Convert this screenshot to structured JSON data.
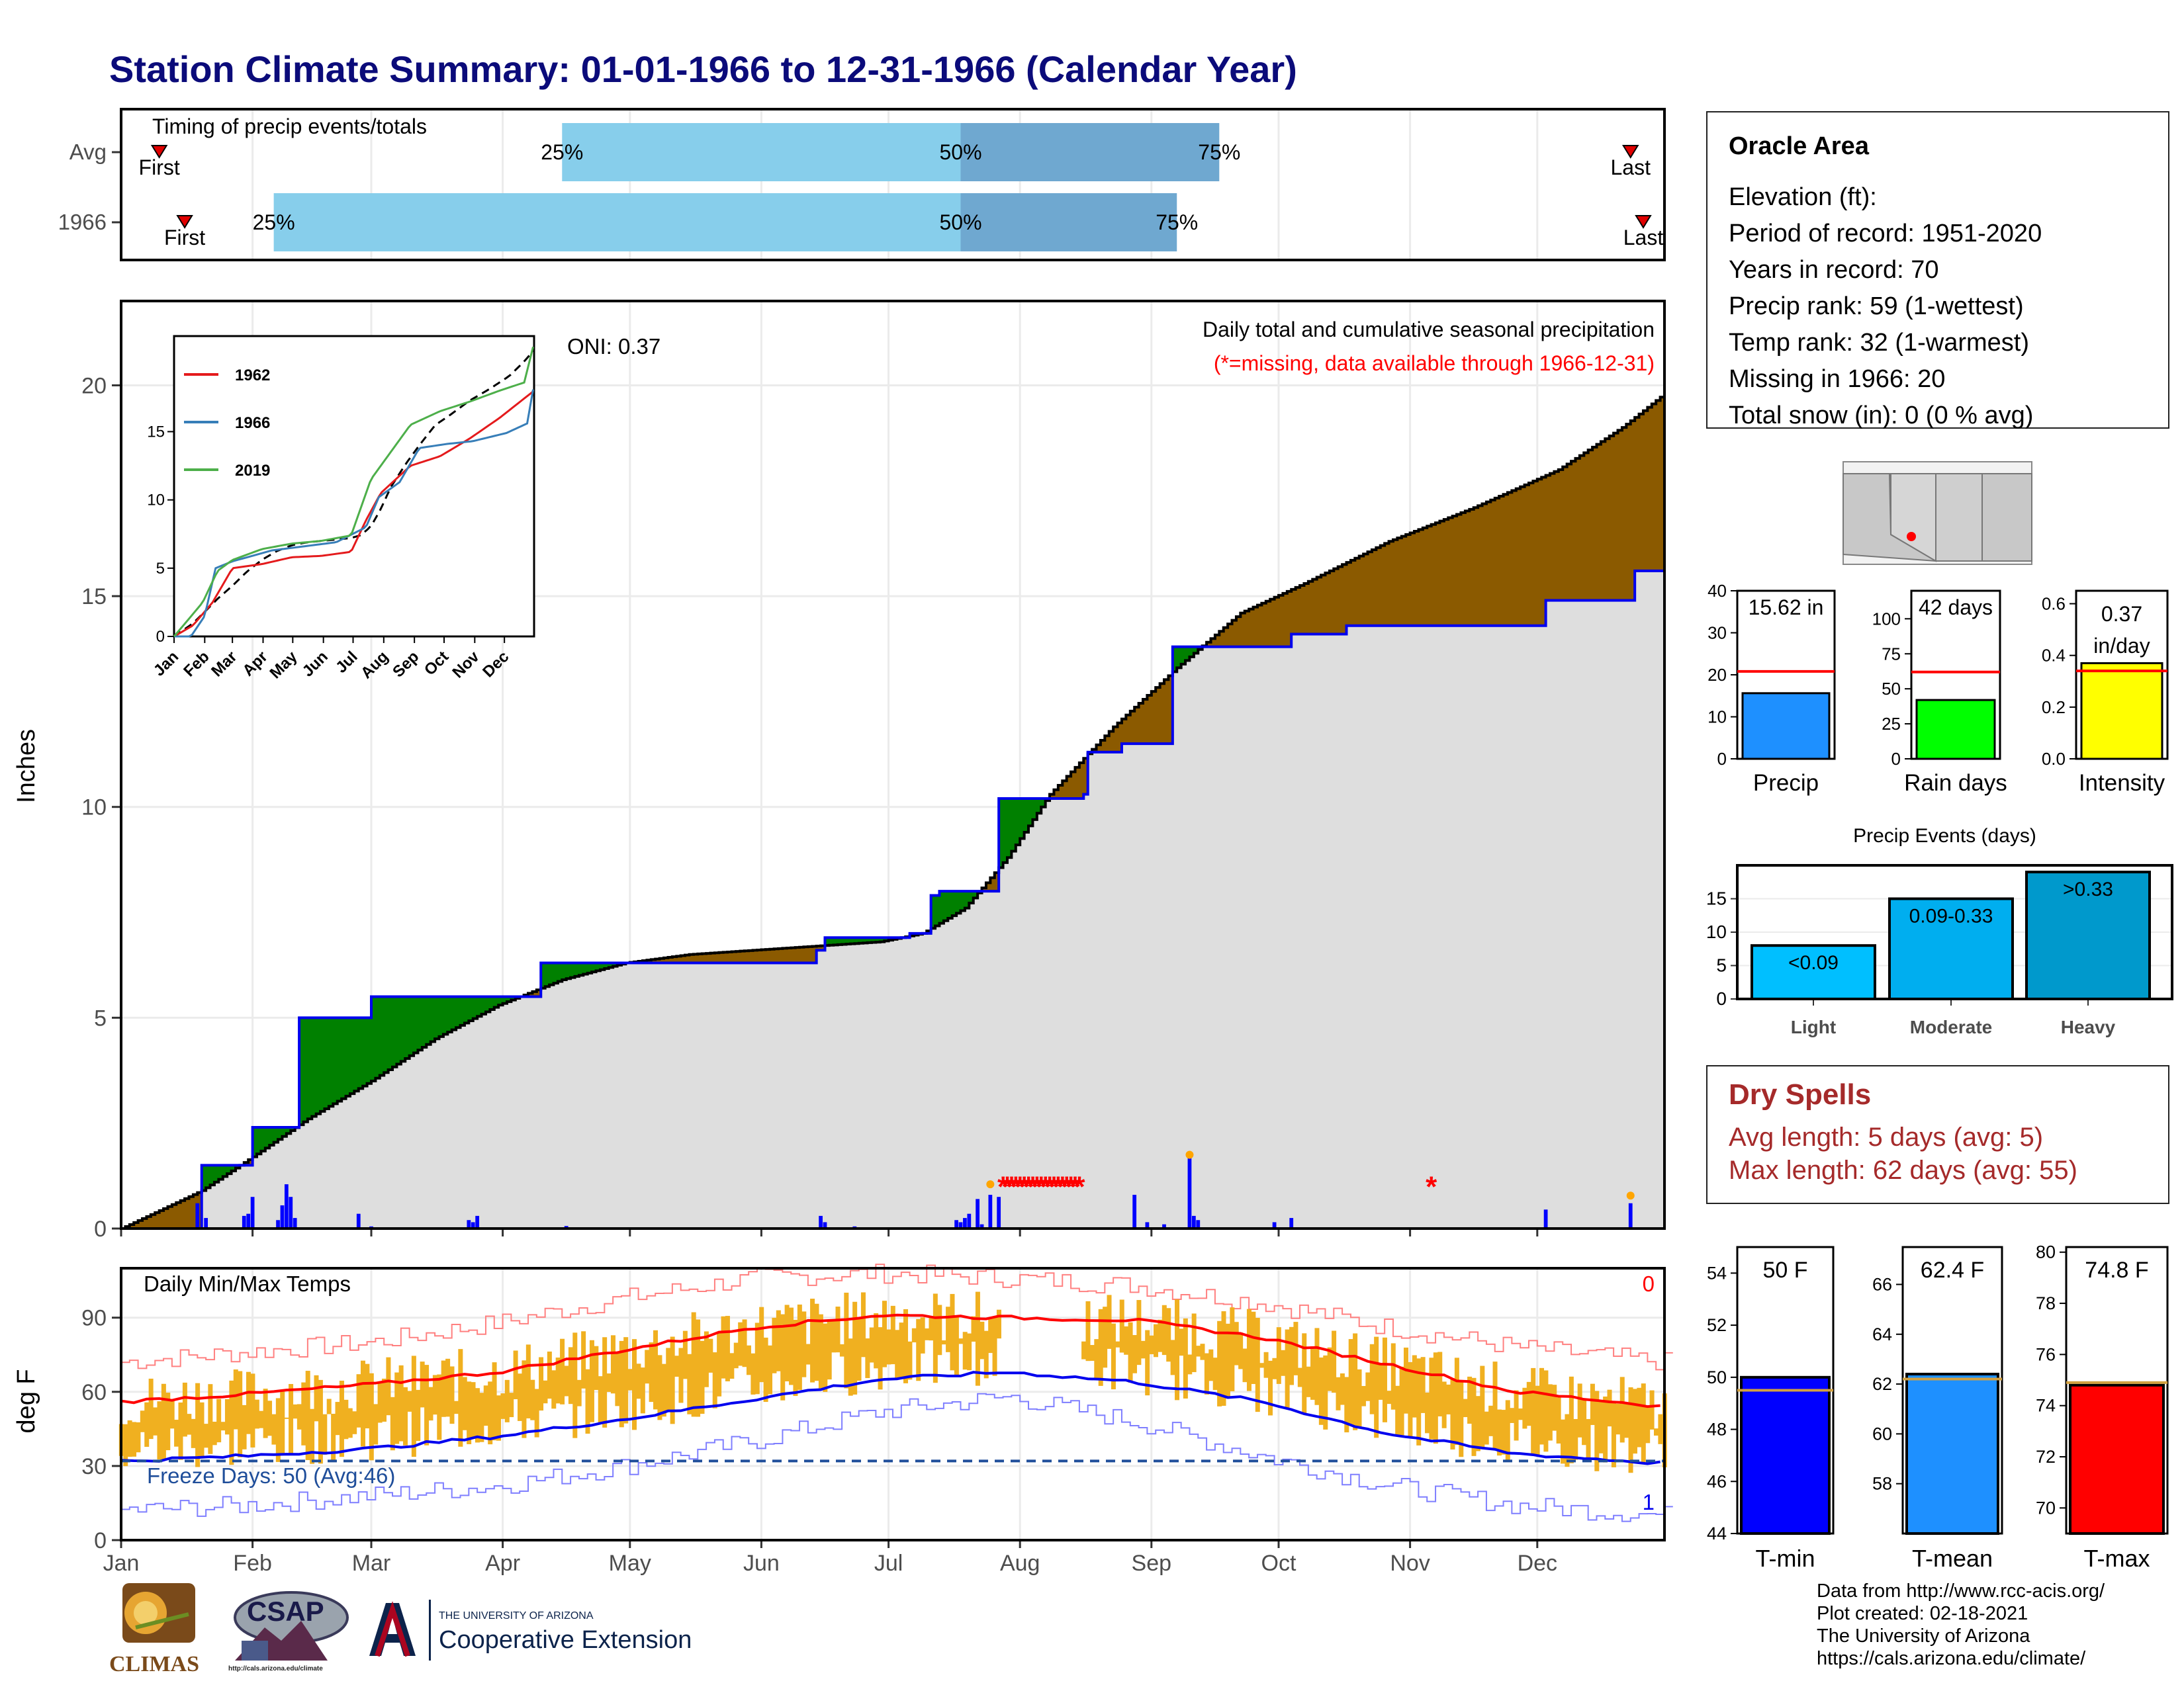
{
  "title": "Station Climate Summary: 01-01-1966 to 12-31-1966 (Calendar Year)",
  "timing": {
    "label": "Timing of precip events/totals",
    "rows": [
      {
        "name": "Avg",
        "first_label": "First",
        "last_label": "Last",
        "first_doy": 10,
        "last_doy": 357,
        "p25_doy": 105,
        "p50_doy": 199,
        "p75_doy": 260,
        "p25_label": "25%",
        "p50_label": "50%",
        "p75_label": "75%"
      },
      {
        "name": "1966",
        "first_label": "First",
        "last_label": "Last",
        "first_doy": 16,
        "last_doy": 360,
        "p25_doy": 37,
        "p50_doy": 199,
        "p75_doy": 250,
        "p25_label": "25%",
        "p50_label": "50%",
        "p75_label": "75%"
      }
    ]
  },
  "precip_panel": {
    "title": "Daily total and cumulative seasonal precipitation",
    "missing_note": "(*=missing, data available through 1966-12-31)",
    "oni": "ONI: 0.37",
    "ylabel": "Inches",
    "yticks": [
      "0",
      "5",
      "10",
      "15",
      "20"
    ]
  },
  "temp_panel": {
    "title": "Daily Min/Max Temps",
    "ylabel": "deg F",
    "yticks": [
      "0",
      "30",
      "60",
      "90"
    ],
    "corner_count_top": "0",
    "corner_count_bottom": "1",
    "freeze": "Freeze Days: 50 (Avg:46)"
  },
  "months": [
    "Jan",
    "Feb",
    "Mar",
    "Apr",
    "May",
    "Jun",
    "Jul",
    "Aug",
    "Sep",
    "Oct",
    "Nov",
    "Dec"
  ],
  "inset": {
    "months": [
      "Jan",
      "Feb",
      "Mar",
      "Apr",
      "May",
      "Jun",
      "Jul",
      "Aug",
      "Sep",
      "Oct",
      "Nov",
      "Dec"
    ],
    "yticks": [
      "0",
      "5",
      "10",
      "15"
    ],
    "legend": [
      {
        "name": "1962",
        "color": "#e41a1c"
      },
      {
        "name": "1966",
        "color": "#377eb8"
      },
      {
        "name": "2019",
        "color": "#4daf4a"
      }
    ]
  },
  "station": {
    "name": "Oracle Area",
    "lines": [
      "Elevation (ft):",
      "Period of record: 1951-2020",
      "Years in record: 70",
      "Precip rank: 59 (1-wettest)",
      "Temp rank: 32 (1-warmest)",
      "Missing in 1966: 20",
      "Total snow (in): 0 (0 % avg)"
    ]
  },
  "dry_spells": {
    "title": "Dry Spells",
    "avg": "Avg length: 5 days (avg: 5)",
    "max": "Max length: 62 days (avg: 55)"
  },
  "mini_bars": [
    {
      "label": "Precip",
      "value_label": "15.62 in",
      "value": 15.62,
      "avg": 20.8,
      "ymax": 40,
      "ticks": [
        "0",
        "10",
        "20",
        "30",
        "40"
      ],
      "color": "#1e90ff"
    },
    {
      "label": "Rain days",
      "value_label": "42 days",
      "value": 42,
      "avg": 62,
      "ymax": 120,
      "ticks": [
        "0",
        "25",
        "50",
        "75",
        "100"
      ],
      "color": "#00ff00"
    },
    {
      "label": "Intensity",
      "value_label_1": "0.37",
      "value_label_2": "in/day",
      "value": 0.37,
      "avg": 0.34,
      "ymax": 0.65,
      "ticks": [
        "0.0",
        "0.2",
        "0.4",
        "0.6"
      ],
      "color": "#ffff00"
    }
  ],
  "precip_events": {
    "title": "Precip Events (days)",
    "categories": [
      "Light",
      "Moderate",
      "Heavy"
    ],
    "range_labels": [
      "<0.09",
      "0.09-0.33",
      ">0.33"
    ],
    "values": [
      8,
      15,
      19
    ],
    "ymax": 20,
    "ticks": [
      "0",
      "5",
      "10",
      "15"
    ],
    "colors": [
      "#00bfff",
      "#00aeef",
      "#0099cc"
    ]
  },
  "temp_bars": [
    {
      "label": "T-min",
      "value_label": "50 F",
      "value": 50.0,
      "avg": 49.5,
      "ymin": 44,
      "ymax": 55,
      "ticks": [
        "44",
        "46",
        "48",
        "50",
        "52",
        "54"
      ],
      "color": "#0000ff"
    },
    {
      "label": "T-mean",
      "value_label": "62.4 F",
      "value": 62.4,
      "avg": 62.2,
      "ymin": 56,
      "ymax": 67.5,
      "ticks": [
        "58",
        "60",
        "62",
        "64",
        "66"
      ],
      "color": "#1e90ff"
    },
    {
      "label": "T-max",
      "value_label": "74.8 F",
      "value": 74.8,
      "avg": 74.9,
      "ymin": 69,
      "ymax": 80.2,
      "ticks": [
        "70",
        "72",
        "74",
        "76",
        "78",
        "80"
      ],
      "color": "#ff0000"
    }
  ],
  "credits": [
    "Data from http://www.rcc-acis.org/",
    "Plot created: 02-18-2021",
    "The University of Arizona",
    "https://cals.arizona.edu/climate/"
  ],
  "logos": {
    "climas": "CLIMAS",
    "csap": "CSAP",
    "csap_url": "http://cals.arizona.edu/climate",
    "ua_small": "THE UNIVERSITY OF ARIZONA",
    "ua_ext": "Cooperative Extension"
  },
  "chart_data": [
    {
      "type": "area",
      "title": "Daily total and cumulative seasonal precipitation",
      "ylabel": "Inches",
      "ylim": [
        0,
        22
      ],
      "series": [
        {
          "name": "Avg cumulative",
          "x_doy": [
            1,
            20,
            32,
            45,
            60,
            75,
            90,
            105,
            120,
            135,
            150,
            165,
            180,
            190,
            200,
            210,
            220,
            235,
            250,
            265,
            280,
            300,
            320,
            340,
            355,
            365
          ],
          "values": [
            0,
            0.9,
            1.7,
            2.6,
            3.5,
            4.5,
            5.3,
            5.9,
            6.3,
            6.5,
            6.6,
            6.7,
            6.8,
            7.0,
            7.6,
            8.8,
            10.3,
            11.9,
            13.3,
            14.6,
            15.3,
            16.3,
            17.1,
            18.0,
            19.0,
            19.8
          ]
        },
        {
          "name": "1966 cumulative",
          "x_doy": [
            1,
            18,
            20,
            31,
            32,
            42,
            43,
            57,
            60,
            65,
            75,
            82,
            85,
            90,
            100,
            105,
            110,
            140,
            162,
            165,
            167,
            180,
            187,
            192,
            194,
            195,
            204,
            208,
            211,
            228,
            229,
            237,
            248,
            249,
            276,
            277,
            280,
            290,
            303,
            336,
            337,
            357,
            358,
            365
          ],
          "values": [
            0,
            0,
            1.5,
            1.5,
            2.4,
            2.4,
            5.0,
            5.0,
            5.5,
            5.5,
            5.5,
            5.5,
            5.5,
            5.5,
            6.3,
            6.3,
            6.3,
            6.3,
            6.3,
            6.6,
            6.9,
            6.9,
            7.0,
            7.9,
            8.0,
            8.0,
            8.0,
            10.2,
            10.2,
            10.3,
            11.3,
            11.5,
            11.5,
            13.8,
            13.8,
            14.1,
            14.1,
            14.3,
            14.3,
            14.3,
            14.9,
            14.9,
            15.6,
            15.6
          ]
        }
      ],
      "daily_bars": [
        [
          19,
          0.6
        ],
        [
          21,
          0.25
        ],
        [
          30,
          0.3
        ],
        [
          31,
          0.35
        ],
        [
          32,
          0.75
        ],
        [
          38,
          0.2
        ],
        [
          39,
          0.55
        ],
        [
          40,
          1.05
        ],
        [
          41,
          0.75
        ],
        [
          42,
          0.25
        ],
        [
          57,
          0.35
        ],
        [
          60,
          0.05
        ],
        [
          83,
          0.2
        ],
        [
          84,
          0.15
        ],
        [
          85,
          0.3
        ],
        [
          106,
          0.06
        ],
        [
          166,
          0.3
        ],
        [
          167,
          0.15
        ],
        [
          174,
          0.05
        ],
        [
          198,
          0.2
        ],
        [
          199,
          0.15
        ],
        [
          200,
          0.25
        ],
        [
          201,
          0.35
        ],
        [
          203,
          0.7
        ],
        [
          204,
          0.1
        ],
        [
          206,
          0.8
        ],
        [
          208,
          0.75
        ],
        [
          240,
          0.8
        ],
        [
          243,
          0.15
        ],
        [
          247,
          0.1
        ],
        [
          253,
          1.7
        ],
        [
          254,
          0.3
        ],
        [
          255,
          0.2
        ],
        [
          273,
          0.15
        ],
        [
          277,
          0.25
        ],
        [
          337,
          0.45
        ],
        [
          357,
          0.6
        ]
      ],
      "missing_doy": [
        209,
        210,
        211,
        212,
        213,
        214,
        215,
        216,
        217,
        218,
        219,
        220,
        221,
        222,
        223,
        224,
        225,
        226,
        227,
        310
      ]
    },
    {
      "type": "line",
      "title": "Daily Min/Max Temps",
      "ylabel": "deg F",
      "ylim": [
        0,
        110
      ],
      "series": [
        {
          "name": "Avg max",
          "x_doy": [
            1,
            30,
            60,
            90,
            120,
            150,
            180,
            210,
            240,
            270,
            300,
            330,
            365
          ],
          "values": [
            56,
            59,
            63,
            68,
            77,
            86,
            91,
            90,
            89,
            82,
            71,
            60,
            54
          ]
        },
        {
          "name": "Avg min",
          "x_doy": [
            1,
            30,
            60,
            90,
            120,
            150,
            180,
            210,
            240,
            270,
            300,
            330,
            365
          ],
          "values": [
            32,
            34,
            37,
            42,
            49,
            57,
            65,
            68,
            64,
            56,
            43,
            35,
            31
          ]
        },
        {
          "name": "Record max",
          "x_doy": [
            1,
            30,
            60,
            90,
            120,
            150,
            180,
            210,
            240,
            270,
            300,
            330,
            365
          ],
          "values": [
            72,
            76,
            80,
            88,
            98,
            106,
            108,
            106,
            103,
            96,
            86,
            78,
            72
          ]
        },
        {
          "name": "Record min",
          "x_doy": [
            1,
            30,
            60,
            90,
            120,
            150,
            180,
            210,
            240,
            270,
            300,
            330,
            365
          ],
          "values": [
            12,
            14,
            18,
            22,
            30,
            40,
            52,
            58,
            48,
            34,
            22,
            14,
            10
          ]
        }
      ],
      "freeze_line": 32
    },
    {
      "type": "bar",
      "title": "Precip",
      "categories": [
        "Precip"
      ],
      "values": [
        15.62
      ],
      "ylim": [
        0,
        40
      ]
    },
    {
      "type": "bar",
      "title": "Rain days",
      "categories": [
        "Rain days"
      ],
      "values": [
        42
      ],
      "ylim": [
        0,
        120
      ]
    },
    {
      "type": "bar",
      "title": "Intensity",
      "categories": [
        "Intensity"
      ],
      "values": [
        0.37
      ],
      "ylim": [
        0,
        0.65
      ]
    },
    {
      "type": "bar",
      "title": "Precip Events (days)",
      "categories": [
        "Light",
        "Moderate",
        "Heavy"
      ],
      "values": [
        8,
        15,
        19
      ],
      "ylim": [
        0,
        20
      ]
    },
    {
      "type": "bar",
      "title": "T-min",
      "categories": [
        "T-min"
      ],
      "values": [
        50.0
      ],
      "ylim": [
        44,
        55
      ]
    },
    {
      "type": "bar",
      "title": "T-mean",
      "categories": [
        "T-mean"
      ],
      "values": [
        62.4
      ],
      "ylim": [
        56,
        67.5
      ]
    },
    {
      "type": "bar",
      "title": "T-max",
      "categories": [
        "T-max"
      ],
      "values": [
        74.8
      ],
      "ylim": [
        69,
        80.2
      ]
    }
  ]
}
